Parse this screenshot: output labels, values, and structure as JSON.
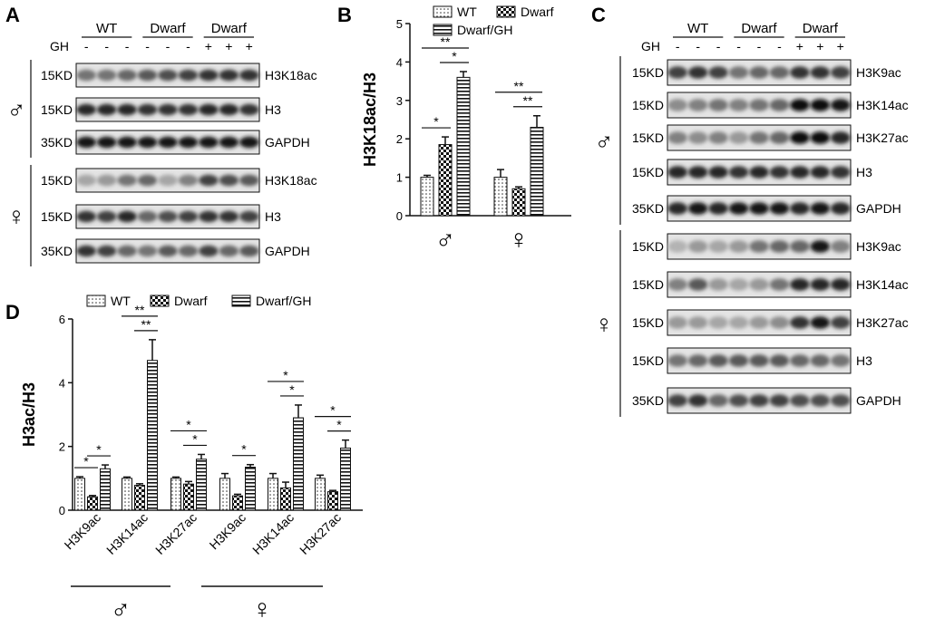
{
  "panels": {
    "A": {
      "letter": "A",
      "groups": [
        "WT",
        "Dwarf",
        "Dwarf"
      ],
      "gh_label": "GH",
      "gh_marks": [
        "-",
        "-",
        "-",
        "-",
        "-",
        "-",
        "+",
        "+",
        "+"
      ],
      "male_symbol": "♂",
      "female_symbol": "♀",
      "blots_male": [
        {
          "kd": "15KD",
          "label": "H3K18ac"
        },
        {
          "kd": "15KD",
          "label": "H3"
        },
        {
          "kd": "35KD",
          "label": "GAPDH"
        }
      ],
      "blots_female": [
        {
          "kd": "15KD",
          "label": "H3K18ac"
        },
        {
          "kd": "15KD",
          "label": "H3"
        },
        {
          "kd": "35KD",
          "label": "GAPDH"
        }
      ]
    },
    "C": {
      "letter": "C",
      "groups": [
        "WT",
        "Dwarf",
        "Dwarf"
      ],
      "gh_label": "GH",
      "gh_marks": [
        "-",
        "-",
        "-",
        "-",
        "-",
        "-",
        "+",
        "+",
        "+"
      ],
      "male_symbol": "♂",
      "female_symbol": "♀",
      "blots_male": [
        {
          "kd": "15KD",
          "label": "H3K9ac"
        },
        {
          "kd": "15KD",
          "label": "H3K14ac"
        },
        {
          "kd": "15KD",
          "label": "H3K27ac"
        },
        {
          "kd": "15KD",
          "label": "H3"
        },
        {
          "kd": "35KD",
          "label": "GAPDH"
        }
      ],
      "blots_female": [
        {
          "kd": "15KD",
          "label": "H3K9ac"
        },
        {
          "kd": "15KD",
          "label": "H3K14ac"
        },
        {
          "kd": "15KD",
          "label": "H3K27ac"
        },
        {
          "kd": "15KD",
          "label": "H3"
        },
        {
          "kd": "35KD",
          "label": "GAPDH"
        }
      ]
    }
  },
  "chart_data": [
    {
      "panel": "B",
      "type": "bar",
      "ylabel": "H3K18ac/H3",
      "ylim": [
        0,
        5
      ],
      "yticks": [
        "0",
        "1",
        "2",
        "3",
        "4",
        "5"
      ],
      "categories": [
        "♂",
        "♀"
      ],
      "series": [
        {
          "name": "WT",
          "values": [
            1.0,
            1.0
          ],
          "errors": [
            0.05,
            0.2
          ]
        },
        {
          "name": "Dwarf",
          "values": [
            1.85,
            0.7
          ],
          "errors": [
            0.2,
            0.05
          ]
        },
        {
          "name": "Dwarf/GH",
          "values": [
            3.6,
            2.3
          ],
          "errors": [
            0.15,
            0.3
          ]
        }
      ],
      "legend": [
        "WT",
        "Dwarf",
        "Dwarf/GH"
      ],
      "legend_position": "top",
      "annotations": [
        {
          "cat": 0,
          "from": 0,
          "to": 1,
          "text": "*"
        },
        {
          "cat": 0,
          "from": 1,
          "to": 2,
          "text": "*"
        },
        {
          "cat": 0,
          "from": 0,
          "to": 2,
          "text": "**"
        },
        {
          "cat": 1,
          "from": 1,
          "to": 2,
          "text": "**"
        },
        {
          "cat": 1,
          "from": 0,
          "to": 2,
          "text": "**"
        }
      ]
    },
    {
      "panel": "D",
      "type": "bar",
      "ylabel": "H3ac/H3",
      "ylim": [
        0,
        6
      ],
      "yticks": [
        "0",
        "2",
        "4",
        "6"
      ],
      "categories": [
        "H3K9ac",
        "H3K14ac",
        "H3K27ac",
        "H3K9ac",
        "H3K14ac",
        "H3K27ac"
      ],
      "sex_groups": [
        {
          "symbol": "♂",
          "categories": [
            0,
            1,
            2
          ]
        },
        {
          "symbol": "♀",
          "categories": [
            3,
            4,
            5
          ]
        }
      ],
      "series": [
        {
          "name": "WT",
          "values": [
            1.0,
            1.0,
            1.0,
            1.0,
            1.0,
            1.0
          ],
          "errors": [
            0.05,
            0.04,
            0.04,
            0.15,
            0.15,
            0.1
          ]
        },
        {
          "name": "Dwarf",
          "values": [
            0.42,
            0.78,
            0.82,
            0.45,
            0.7,
            0.58
          ],
          "errors": [
            0.04,
            0.05,
            0.08,
            0.05,
            0.18,
            0.04
          ]
        },
        {
          "name": "Dwarf/GH",
          "values": [
            1.3,
            4.7,
            1.6,
            1.35,
            2.9,
            1.95
          ],
          "errors": [
            0.12,
            0.65,
            0.15,
            0.08,
            0.4,
            0.25
          ]
        }
      ],
      "legend": [
        "WT",
        "Dwarf",
        "Dwarf/GH"
      ],
      "legend_position": "top",
      "annotations": [
        {
          "cat": 0,
          "from": 0,
          "to": 1,
          "text": "*"
        },
        {
          "cat": 0,
          "from": 1,
          "to": 2,
          "text": "*"
        },
        {
          "cat": 1,
          "from": 1,
          "to": 2,
          "text": "**"
        },
        {
          "cat": 1,
          "from": 0,
          "to": 2,
          "text": "**"
        },
        {
          "cat": 2,
          "from": 1,
          "to": 2,
          "text": "*"
        },
        {
          "cat": 2,
          "from": 0,
          "to": 2,
          "text": "*"
        },
        {
          "cat": 3,
          "from": 1,
          "to": 2,
          "text": "*"
        },
        {
          "cat": 4,
          "from": 1,
          "to": 2,
          "text": "*"
        },
        {
          "cat": 4,
          "from": 0,
          "to": 2,
          "text": "*"
        },
        {
          "cat": 5,
          "from": 1,
          "to": 2,
          "text": "*"
        },
        {
          "cat": 5,
          "from": 0,
          "to": 2,
          "text": "*"
        }
      ]
    }
  ],
  "labels": {
    "B": "B",
    "D": "D"
  },
  "blot_intensity": {
    "A": {
      "male": [
        [
          0.55,
          0.55,
          0.6,
          0.65,
          0.7,
          0.75,
          0.8,
          0.8,
          0.8
        ],
        [
          0.85,
          0.85,
          0.85,
          0.8,
          0.8,
          0.8,
          0.85,
          0.85,
          0.8
        ],
        [
          0.9,
          0.9,
          0.9,
          0.9,
          0.9,
          0.9,
          0.9,
          0.9,
          0.9
        ]
      ],
      "female": [
        [
          0.35,
          0.4,
          0.55,
          0.6,
          0.35,
          0.5,
          0.75,
          0.7,
          0.65
        ],
        [
          0.8,
          0.75,
          0.85,
          0.6,
          0.7,
          0.75,
          0.8,
          0.8,
          0.75
        ],
        [
          0.8,
          0.75,
          0.6,
          0.55,
          0.65,
          0.6,
          0.75,
          0.6,
          0.65
        ]
      ]
    },
    "C": {
      "male": [
        [
          0.75,
          0.8,
          0.75,
          0.55,
          0.6,
          0.6,
          0.8,
          0.8,
          0.75
        ],
        [
          0.45,
          0.5,
          0.55,
          0.5,
          0.55,
          0.6,
          0.95,
          0.95,
          0.9
        ],
        [
          0.5,
          0.45,
          0.5,
          0.4,
          0.55,
          0.6,
          0.95,
          0.95,
          0.85
        ],
        [
          0.85,
          0.85,
          0.85,
          0.8,
          0.85,
          0.8,
          0.85,
          0.85,
          0.8
        ],
        [
          0.85,
          0.9,
          0.85,
          0.9,
          0.9,
          0.9,
          0.85,
          0.9,
          0.85
        ]
      ],
      "female": [
        [
          0.3,
          0.4,
          0.35,
          0.4,
          0.55,
          0.6,
          0.6,
          0.9,
          0.5
        ],
        [
          0.5,
          0.65,
          0.4,
          0.35,
          0.4,
          0.55,
          0.85,
          0.85,
          0.85
        ],
        [
          0.4,
          0.4,
          0.35,
          0.35,
          0.4,
          0.45,
          0.8,
          0.9,
          0.75
        ],
        [
          0.55,
          0.6,
          0.65,
          0.65,
          0.65,
          0.65,
          0.6,
          0.6,
          0.55
        ],
        [
          0.75,
          0.8,
          0.6,
          0.7,
          0.75,
          0.75,
          0.7,
          0.7,
          0.7
        ]
      ]
    }
  }
}
